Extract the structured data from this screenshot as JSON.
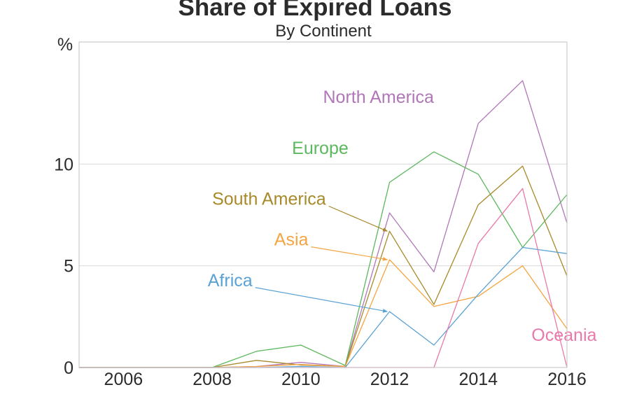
{
  "chart_data": {
    "type": "line",
    "title": "Share of Expired Loans",
    "subtitle": "By Continent",
    "ylabel": "%",
    "xlim": [
      2005,
      2016
    ],
    "ylim": [
      0,
      16
    ],
    "yticks": [
      0,
      5,
      10
    ],
    "xticks": [
      2006,
      2008,
      2010,
      2012,
      2014,
      2016
    ],
    "grid": "horizontal",
    "x": [
      2005,
      2006,
      2007,
      2008,
      2009,
      2010,
      2011,
      2012,
      2013,
      2014,
      2015,
      2016
    ],
    "series": [
      {
        "name": "North America",
        "color": "#b176b8",
        "values": [
          0,
          0,
          0,
          0,
          0.05,
          0.25,
          0.05,
          7.6,
          4.7,
          12.0,
          14.1,
          7.1
        ]
      },
      {
        "name": "Europe",
        "color": "#5cb85c",
        "values": [
          0,
          0,
          0,
          0,
          0.8,
          1.1,
          0.1,
          9.1,
          10.6,
          9.5,
          5.9,
          8.5
        ]
      },
      {
        "name": "South America",
        "color": "#a8892a",
        "values": [
          0,
          0,
          0,
          0,
          0.35,
          0.12,
          0.05,
          6.7,
          3.1,
          8.0,
          9.9,
          4.5
        ]
      },
      {
        "name": "Asia",
        "color": "#f5a442",
        "values": [
          0,
          0,
          0,
          0,
          0.05,
          0.15,
          0.05,
          5.3,
          3.0,
          3.5,
          5.0,
          1.9
        ]
      },
      {
        "name": "Africa",
        "color": "#5aa2d4",
        "values": [
          0,
          0,
          0,
          0,
          0,
          0.05,
          0,
          2.75,
          1.1,
          3.6,
          5.9,
          5.6
        ]
      },
      {
        "name": "Oceania",
        "color": "#e879aa",
        "values": [
          0,
          0,
          0,
          0,
          0,
          0,
          0,
          0,
          0,
          6.1,
          8.8,
          0
        ]
      }
    ],
    "annotations": [
      {
        "series": "North America",
        "x": 2010.5,
        "y": 13.0,
        "arrow": false
      },
      {
        "series": "Europe",
        "x": 2009.8,
        "y": 10.5,
        "arrow": false
      },
      {
        "series": "South America",
        "x": 2008.0,
        "y": 8.0,
        "arrow_to": [
          2011.95,
          6.7
        ]
      },
      {
        "series": "Asia",
        "x": 2009.4,
        "y": 6.0,
        "arrow_to": [
          2011.95,
          5.3
        ]
      },
      {
        "series": "Africa",
        "x": 2007.9,
        "y": 4.0,
        "arrow_to": [
          2011.95,
          2.75
        ]
      },
      {
        "series": "Oceania",
        "x": 2015.2,
        "y": 1.3,
        "arrow": false
      }
    ]
  }
}
